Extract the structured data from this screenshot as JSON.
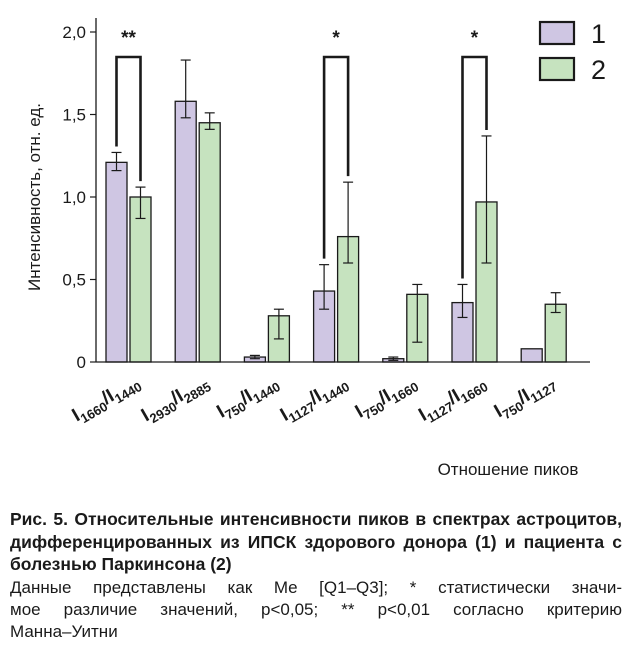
{
  "chart_data": {
    "type": "bar",
    "title": "",
    "ylabel": "Интенсивность, отн. ед.",
    "xlabel": "Отношение пиков",
    "ylim": [
      0,
      2.0
    ],
    "yticks": [
      {
        "value": 0,
        "label": "0"
      },
      {
        "value": 0.5,
        "label": "0,5"
      },
      {
        "value": 1.0,
        "label": "1,0"
      },
      {
        "value": 1.5,
        "label": "1,5"
      },
      {
        "value": 2.0,
        "label": "2,0"
      }
    ],
    "categories": [
      {
        "num": "1660",
        "den": "1440"
      },
      {
        "num": "2930",
        "den": "2885"
      },
      {
        "num": "750",
        "den": "1440"
      },
      {
        "num": "1127",
        "den": "1440"
      },
      {
        "num": "750",
        "den": "1660"
      },
      {
        "num": "1127",
        "den": "1660"
      },
      {
        "num": "750",
        "den": "1127"
      }
    ],
    "series": [
      {
        "name": "1",
        "color": "#cfc6e3",
        "values": [
          1.21,
          1.58,
          0.03,
          0.43,
          0.02,
          0.36,
          0.08
        ],
        "err_low": [
          1.16,
          1.48,
          0.02,
          0.32,
          0.01,
          0.27,
          0.08
        ],
        "err_high": [
          1.27,
          1.83,
          0.04,
          0.59,
          0.03,
          0.47,
          0.08
        ]
      },
      {
        "name": "2",
        "color": "#c6e3bf",
        "values": [
          1.0,
          1.45,
          0.28,
          0.76,
          0.41,
          0.97,
          0.35
        ],
        "err_low": [
          0.87,
          1.41,
          0.14,
          0.6,
          0.12,
          0.6,
          0.3
        ],
        "err_high": [
          1.06,
          1.51,
          0.32,
          1.09,
          0.47,
          1.37,
          0.42
        ]
      }
    ],
    "significance": [
      {
        "category_index": 0,
        "label": "**"
      },
      {
        "category_index": 3,
        "label": "*"
      },
      {
        "category_index": 5,
        "label": "*"
      }
    ],
    "legend_position": "top-right",
    "grid": false
  },
  "caption": {
    "title": "Рис. 5. Относительные интенсивности пиков в спектрах астроцитов, дифференцированных из ИПСК здорового донора (1) и пациента с болезнью Паркинсона (2)",
    "note_lines": [
      "Данные представлены как Me [Q1–Q3]; * статистически значи-",
      "мое различие значений, p<0,05; ** p<0,01 согласно критерию",
      "Манна–Уитни"
    ]
  }
}
